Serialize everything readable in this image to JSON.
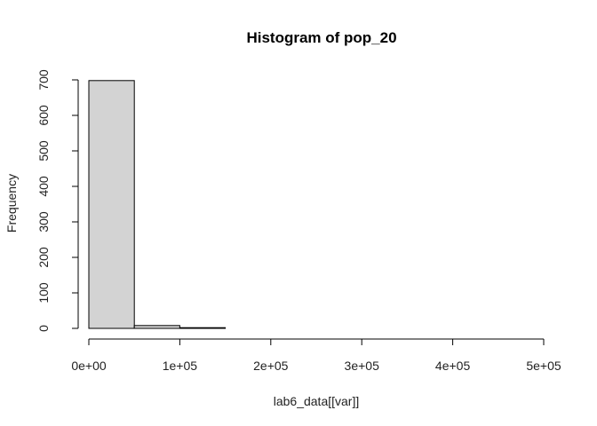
{
  "chart_data": {
    "type": "bar",
    "title": "Histogram of pop_20",
    "xlabel": "lab6_data[[var]]",
    "ylabel": "Frequency",
    "bin_edges": [
      0,
      50000,
      100000,
      150000,
      200000,
      250000,
      300000,
      350000,
      400000,
      450000,
      500000
    ],
    "values": [
      698,
      8,
      2,
      0,
      0,
      0,
      0,
      0,
      0,
      0
    ],
    "xlim": [
      0,
      500000
    ],
    "ylim": [
      0,
      700
    ],
    "x_ticks": [
      0,
      100000,
      200000,
      300000,
      400000,
      500000
    ],
    "x_tick_labels": [
      "0e+00",
      "1e+05",
      "2e+05",
      "3e+05",
      "4e+05",
      "5e+05"
    ],
    "y_ticks": [
      0,
      100,
      200,
      300,
      400,
      500,
      600,
      700
    ],
    "y_tick_labels": [
      "0",
      "100",
      "200",
      "300",
      "400",
      "500",
      "600",
      "700"
    ],
    "grid": false,
    "bar_color": "#d3d3d3",
    "edge_color": "#000000"
  }
}
